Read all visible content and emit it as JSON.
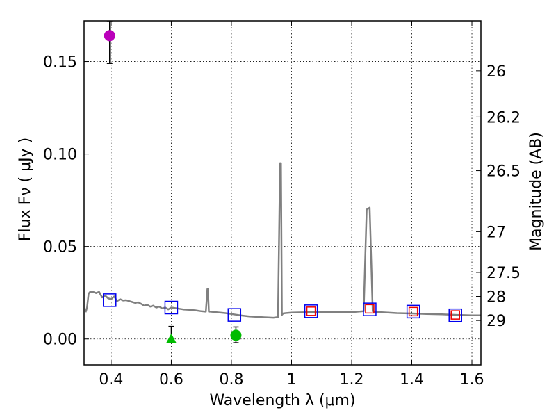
{
  "chart_data": {
    "type": "scatter",
    "title": "",
    "xlabel": "Wavelength  λ (μm)",
    "ylabel": "Flux  Fν  ( μJy )",
    "y2label": "Magnitude (AB)",
    "xlim": [
      0.31,
      1.63
    ],
    "ylim": [
      -0.014,
      0.172
    ],
    "grid": true,
    "legend": "none",
    "x_ticks": [
      0.4,
      0.6,
      0.8,
      1.0,
      1.2,
      1.4,
      1.6
    ],
    "x_tick_labels": [
      "0.4",
      "0.6",
      "0.8",
      "1",
      "1.2",
      "1.4",
      "1.6"
    ],
    "y_ticks": [
      0.0,
      0.05,
      0.1,
      0.15
    ],
    "y_tick_labels": [
      "0.00",
      "0.05",
      "0.10",
      "0.15"
    ],
    "y2_ticks": [
      {
        "label": "26",
        "flux": 0.145
      },
      {
        "label": "26.2",
        "flux": 0.12
      },
      {
        "label": "26.5",
        "flux": 0.091
      },
      {
        "label": "27",
        "flux": 0.058
      },
      {
        "label": "27.5",
        "flux": 0.036
      },
      {
        "label": "28",
        "flux": 0.023
      },
      {
        "label": "29",
        "flux": 0.01
      }
    ],
    "series": [
      {
        "name": "model spectrum",
        "kind": "line",
        "color": "#808080",
        "x": [
          0.315,
          0.32,
          0.325,
          0.33,
          0.34,
          0.35,
          0.36,
          0.37,
          0.38,
          0.39,
          0.4,
          0.41,
          0.42,
          0.43,
          0.44,
          0.45,
          0.46,
          0.47,
          0.48,
          0.49,
          0.5,
          0.51,
          0.52,
          0.53,
          0.54,
          0.55,
          0.56,
          0.57,
          0.58,
          0.59,
          0.6,
          0.62,
          0.64,
          0.66,
          0.68,
          0.7,
          0.715,
          0.72,
          0.722,
          0.725,
          0.73,
          0.75,
          0.78,
          0.8,
          0.83,
          0.86,
          0.9,
          0.94,
          0.955,
          0.962,
          0.965,
          0.968,
          0.972,
          0.98,
          1.0,
          1.05,
          1.1,
          1.15,
          1.2,
          1.24,
          1.25,
          1.26,
          1.27,
          1.28,
          1.3,
          1.35,
          1.4,
          1.45,
          1.5,
          1.55,
          1.6,
          1.63
        ],
        "y": [
          0.0145,
          0.017,
          0.0245,
          0.0255,
          0.0255,
          0.0248,
          0.0255,
          0.0225,
          0.0235,
          0.022,
          0.0215,
          0.023,
          0.0205,
          0.0215,
          0.0208,
          0.021,
          0.0205,
          0.02,
          0.0195,
          0.0198,
          0.019,
          0.018,
          0.0185,
          0.0175,
          0.018,
          0.017,
          0.0175,
          0.0165,
          0.017,
          0.016,
          0.017,
          0.0165,
          0.016,
          0.0158,
          0.0155,
          0.015,
          0.0148,
          0.027,
          0.027,
          0.0148,
          0.0148,
          0.0145,
          0.014,
          0.0135,
          0.0128,
          0.0122,
          0.0118,
          0.0115,
          0.0118,
          0.095,
          0.095,
          0.013,
          0.0138,
          0.014,
          0.0143,
          0.0145,
          0.0145,
          0.0145,
          0.0145,
          0.015,
          0.07,
          0.071,
          0.015,
          0.0145,
          0.0145,
          0.014,
          0.0138,
          0.0135,
          0.0133,
          0.013,
          0.0128,
          0.0128
        ]
      },
      {
        "name": "model photometry",
        "kind": "open-square",
        "color": "#0000ee",
        "x": [
          0.395,
          0.6,
          0.81,
          1.065,
          1.26,
          1.405,
          1.545
        ],
        "y": [
          0.021,
          0.017,
          0.013,
          0.015,
          0.016,
          0.0148,
          0.0128
        ]
      },
      {
        "name": "observed photometry",
        "kind": "open-square",
        "color": "#ee0000",
        "x": [
          1.065,
          1.26,
          1.405,
          1.545
        ],
        "y": [
          0.015,
          0.0163,
          0.0148,
          0.013
        ]
      },
      {
        "name": "detection (magenta)",
        "kind": "circle",
        "color": "#bb00bb",
        "x": [
          0.395
        ],
        "y": [
          0.164
        ],
        "yerr_low": [
          0.149
        ],
        "yerr_high": [
          0.172
        ]
      },
      {
        "name": "detection (green)",
        "kind": "circle",
        "color": "#00bb00",
        "x": [
          0.815
        ],
        "y": [
          0.002
        ],
        "yerr_low": [
          -0.002
        ],
        "yerr_high": [
          0.0065
        ]
      },
      {
        "name": "upper limit (green)",
        "kind": "triangle",
        "color": "#00bb00",
        "x": [
          0.6
        ],
        "y": [
          0.0
        ],
        "yerr_low": [
          -0.001
        ],
        "yerr_high": [
          0.0068
        ]
      }
    ]
  }
}
